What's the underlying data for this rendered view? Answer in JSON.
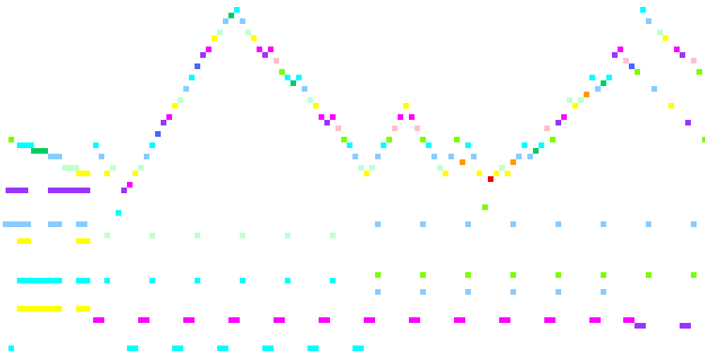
{
  "palette": {
    "cyan": "#00ffff",
    "sky": "#88ccff",
    "mint": "#c0ffd0",
    "yellow": "#ffff00",
    "magenta": "#ff00ff",
    "purple": "#9933ff",
    "lime": "#77ff00",
    "green": "#00cc66",
    "blue": "#4466ff",
    "pink": "#ffc0cb",
    "orange": "#ff9900",
    "red": "#ee0000"
  },
  "melody": [
    [
      12,
      194,
      "lime"
    ],
    [
      24,
      202,
      "cyan"
    ],
    [
      32,
      202,
      "cyan"
    ],
    [
      40,
      202,
      "cyan"
    ],
    [
      44,
      210,
      "green"
    ],
    [
      52,
      210,
      "green"
    ],
    [
      60,
      210,
      "green"
    ],
    [
      68,
      218,
      "sky"
    ],
    [
      76,
      218,
      "sky"
    ],
    [
      80,
      218,
      "sky"
    ],
    [
      88,
      234,
      "mint"
    ],
    [
      96,
      234,
      "mint"
    ],
    [
      104,
      234,
      "mint"
    ],
    [
      108,
      242,
      "yellow"
    ],
    [
      116,
      242,
      "yellow"
    ],
    [
      120,
      242,
      "yellow"
    ],
    [
      132,
      202,
      "cyan"
    ],
    [
      140,
      218,
      "sky"
    ],
    [
      148,
      242,
      "yellow"
    ],
    [
      156,
      234,
      "mint"
    ],
    [
      164,
      298,
      "cyan"
    ],
    [
      172,
      266,
      "purple"
    ],
    [
      180,
      258,
      "magenta"
    ],
    [
      188,
      242,
      "yellow"
    ],
    [
      196,
      234,
      "mint"
    ],
    [
      204,
      218,
      "sky"
    ],
    [
      212,
      202,
      "cyan"
    ],
    [
      220,
      186,
      "blue"
    ],
    [
      228,
      170,
      "purple"
    ],
    [
      236,
      162,
      "magenta"
    ],
    [
      244,
      146,
      "yellow"
    ],
    [
      252,
      138,
      "mint"
    ],
    [
      260,
      122,
      "sky"
    ],
    [
      268,
      106,
      "cyan"
    ],
    [
      276,
      90,
      "blue"
    ],
    [
      284,
      74,
      "purple"
    ],
    [
      292,
      66,
      "magenta"
    ],
    [
      300,
      50,
      "yellow"
    ],
    [
      308,
      42,
      "mint"
    ],
    [
      316,
      26,
      "sky"
    ],
    [
      324,
      18,
      "green"
    ],
    [
      332,
      10,
      "cyan"
    ],
    [
      340,
      26,
      "sky"
    ],
    [
      348,
      42,
      "mint"
    ],
    [
      356,
      50,
      "yellow"
    ],
    [
      364,
      66,
      "magenta"
    ],
    [
      372,
      74,
      "purple"
    ],
    [
      380,
      66,
      "magenta"
    ],
    [
      388,
      82,
      "pink"
    ],
    [
      396,
      98,
      "lime"
    ],
    [
      404,
      106,
      "cyan"
    ],
    [
      412,
      114,
      "green"
    ],
    [
      420,
      106,
      "cyan"
    ],
    [
      428,
      122,
      "sky"
    ],
    [
      436,
      138,
      "mint"
    ],
    [
      444,
      146,
      "yellow"
    ],
    [
      452,
      162,
      "magenta"
    ],
    [
      460,
      170,
      "purple"
    ],
    [
      468,
      162,
      "magenta"
    ],
    [
      476,
      178,
      "pink"
    ],
    [
      484,
      194,
      "lime"
    ],
    [
      492,
      202,
      "cyan"
    ],
    [
      500,
      218,
      "sky"
    ],
    [
      508,
      234,
      "mint"
    ],
    [
      516,
      242,
      "yellow"
    ],
    [
      524,
      234,
      "mint"
    ],
    [
      532,
      218,
      "sky"
    ],
    [
      540,
      202,
      "cyan"
    ],
    [
      548,
      194,
      "lime"
    ],
    [
      556,
      178,
      "pink"
    ],
    [
      564,
      162,
      "magenta"
    ],
    [
      572,
      146,
      "yellow"
    ],
    [
      580,
      162,
      "magenta"
    ],
    [
      588,
      178,
      "pink"
    ],
    [
      596,
      194,
      "lime"
    ],
    [
      604,
      202,
      "cyan"
    ],
    [
      612,
      218,
      "sky"
    ],
    [
      620,
      234,
      "mint"
    ],
    [
      628,
      242,
      "yellow"
    ],
    [
      636,
      218,
      "sky"
    ],
    [
      644,
      194,
      "lime"
    ],
    [
      652,
      226,
      "orange"
    ],
    [
      660,
      202,
      "cyan"
    ],
    [
      668,
      218,
      "sky"
    ],
    [
      676,
      242,
      "yellow"
    ],
    [
      684,
      290,
      "lime"
    ],
    [
      692,
      250,
      "red"
    ],
    [
      700,
      242,
      "yellow"
    ],
    [
      708,
      234,
      "mint"
    ],
    [
      716,
      242,
      "yellow"
    ],
    [
      724,
      226,
      "orange"
    ],
    [
      732,
      218,
      "sky"
    ],
    [
      740,
      202,
      "cyan"
    ],
    [
      748,
      218,
      "sky"
    ],
    [
      756,
      210,
      "green"
    ],
    [
      764,
      202,
      "cyan"
    ],
    [
      772,
      178,
      "pink"
    ],
    [
      780,
      194,
      "lime"
    ],
    [
      788,
      170,
      "purple"
    ],
    [
      796,
      162,
      "magenta"
    ],
    [
      804,
      138,
      "mint"
    ],
    [
      812,
      146,
      "yellow"
    ],
    [
      820,
      138,
      "mint"
    ],
    [
      828,
      130,
      "orange"
    ],
    [
      836,
      106,
      "cyan"
    ],
    [
      844,
      122,
      "sky"
    ],
    [
      852,
      114,
      "green"
    ],
    [
      860,
      106,
      "cyan"
    ],
    [
      868,
      74,
      "purple"
    ],
    [
      876,
      66,
      "magenta"
    ],
    [
      884,
      82,
      "pink"
    ],
    [
      892,
      90,
      "blue"
    ],
    [
      900,
      98,
      "lime"
    ],
    [
      908,
      10,
      "cyan"
    ],
    [
      916,
      26,
      "sky"
    ],
    [
      924,
      122,
      "sky"
    ],
    [
      932,
      42,
      "mint"
    ],
    [
      940,
      50,
      "yellow"
    ],
    [
      948,
      146,
      "yellow"
    ],
    [
      956,
      66,
      "magenta"
    ],
    [
      964,
      74,
      "purple"
    ],
    [
      972,
      170,
      "purple"
    ],
    [
      980,
      82,
      "pink"
    ],
    [
      988,
      98,
      "lime"
    ],
    [
      996,
      194,
      "lime"
    ]
  ],
  "accompaniment": [
    [
      8,
      266,
      "purple"
    ],
    [
      16,
      266,
      "purple"
    ],
    [
      24,
      266,
      "purple"
    ],
    [
      32,
      266,
      "purple"
    ],
    [
      68,
      266,
      "purple"
    ],
    [
      76,
      266,
      "purple"
    ],
    [
      84,
      266,
      "purple"
    ],
    [
      92,
      266,
      "purple"
    ],
    [
      100,
      266,
      "purple"
    ],
    [
      108,
      266,
      "purple"
    ],
    [
      116,
      266,
      "purple"
    ],
    [
      120,
      266,
      "purple"
    ],
    [
      4,
      314,
      "sky"
    ],
    [
      12,
      314,
      "sky"
    ],
    [
      20,
      314,
      "sky"
    ],
    [
      28,
      314,
      "sky"
    ],
    [
      36,
      314,
      "sky"
    ],
    [
      68,
      314,
      "sky"
    ],
    [
      76,
      314,
      "sky"
    ],
    [
      80,
      314,
      "sky"
    ],
    [
      108,
      314,
      "sky"
    ],
    [
      116,
      314,
      "sky"
    ],
    [
      24,
      338,
      "yellow"
    ],
    [
      32,
      338,
      "yellow"
    ],
    [
      36,
      338,
      "yellow"
    ],
    [
      108,
      338,
      "yellow"
    ],
    [
      116,
      338,
      "yellow"
    ],
    [
      120,
      338,
      "yellow"
    ],
    [
      24,
      394,
      "cyan"
    ],
    [
      32,
      394,
      "cyan"
    ],
    [
      40,
      394,
      "cyan"
    ],
    [
      48,
      394,
      "cyan"
    ],
    [
      56,
      394,
      "cyan"
    ],
    [
      64,
      394,
      "cyan"
    ],
    [
      72,
      394,
      "cyan"
    ],
    [
      80,
      394,
      "cyan"
    ],
    [
      108,
      394,
      "cyan"
    ],
    [
      116,
      394,
      "cyan"
    ],
    [
      120,
      394,
      "cyan"
    ],
    [
      24,
      434,
      "yellow"
    ],
    [
      32,
      434,
      "yellow"
    ],
    [
      40,
      434,
      "yellow"
    ],
    [
      48,
      434,
      "yellow"
    ],
    [
      56,
      434,
      "yellow"
    ],
    [
      64,
      434,
      "yellow"
    ],
    [
      72,
      434,
      "yellow"
    ],
    [
      80,
      434,
      "yellow"
    ],
    [
      108,
      434,
      "yellow"
    ],
    [
      116,
      434,
      "yellow"
    ],
    [
      120,
      434,
      "yellow"
    ],
    [
      148,
      330,
      "mint"
    ],
    [
      212,
      330,
      "mint"
    ],
    [
      276,
      330,
      "mint"
    ],
    [
      340,
      330,
      "mint"
    ],
    [
      404,
      330,
      "mint"
    ],
    [
      468,
      330,
      "mint"
    ],
    [
      148,
      394,
      "cyan"
    ],
    [
      212,
      394,
      "cyan"
    ],
    [
      276,
      394,
      "cyan"
    ],
    [
      340,
      394,
      "cyan"
    ],
    [
      404,
      394,
      "cyan"
    ],
    [
      468,
      394,
      "cyan"
    ],
    [
      532,
      314,
      "sky"
    ],
    [
      596,
      314,
      "sky"
    ],
    [
      660,
      314,
      "sky"
    ],
    [
      724,
      314,
      "sky"
    ],
    [
      788,
      314,
      "sky"
    ],
    [
      852,
      314,
      "sky"
    ],
    [
      916,
      314,
      "sky"
    ],
    [
      980,
      314,
      "sky"
    ],
    [
      532,
      386,
      "lime"
    ],
    [
      596,
      386,
      "lime"
    ],
    [
      660,
      386,
      "lime"
    ],
    [
      724,
      386,
      "lime"
    ],
    [
      788,
      386,
      "lime"
    ],
    [
      852,
      386,
      "lime"
    ],
    [
      916,
      386,
      "lime"
    ],
    [
      980,
      386,
      "lime"
    ],
    [
      532,
      410,
      "sky"
    ],
    [
      596,
      410,
      "sky"
    ],
    [
      660,
      410,
      "sky"
    ],
    [
      724,
      410,
      "sky"
    ],
    [
      788,
      410,
      "sky"
    ],
    [
      852,
      410,
      "sky"
    ],
    [
      132,
      450,
      "magenta"
    ],
    [
      140,
      450,
      "magenta"
    ],
    [
      196,
      450,
      "magenta"
    ],
    [
      204,
      450,
      "magenta"
    ],
    [
      260,
      450,
      "magenta"
    ],
    [
      268,
      450,
      "magenta"
    ],
    [
      324,
      450,
      "magenta"
    ],
    [
      332,
      450,
      "magenta"
    ],
    [
      388,
      450,
      "magenta"
    ],
    [
      396,
      450,
      "magenta"
    ],
    [
      452,
      450,
      "magenta"
    ],
    [
      460,
      450,
      "magenta"
    ],
    [
      516,
      450,
      "magenta"
    ],
    [
      524,
      450,
      "magenta"
    ],
    [
      580,
      450,
      "magenta"
    ],
    [
      588,
      450,
      "magenta"
    ],
    [
      644,
      450,
      "magenta"
    ],
    [
      652,
      450,
      "magenta"
    ],
    [
      708,
      450,
      "magenta"
    ],
    [
      716,
      450,
      "magenta"
    ],
    [
      772,
      450,
      "magenta"
    ],
    [
      780,
      450,
      "magenta"
    ],
    [
      836,
      450,
      "magenta"
    ],
    [
      844,
      450,
      "magenta"
    ],
    [
      884,
      450,
      "magenta"
    ],
    [
      892,
      450,
      "magenta"
    ],
    [
      900,
      458,
      "purple"
    ],
    [
      908,
      458,
      "purple"
    ],
    [
      964,
      458,
      "purple"
    ],
    [
      972,
      458,
      "purple"
    ],
    [
      12,
      490,
      "cyan"
    ],
    [
      180,
      490,
      "cyan"
    ],
    [
      188,
      490,
      "cyan"
    ],
    [
      244,
      490,
      "cyan"
    ],
    [
      252,
      490,
      "cyan"
    ],
    [
      308,
      490,
      "cyan"
    ],
    [
      316,
      490,
      "cyan"
    ],
    [
      372,
      490,
      "cyan"
    ],
    [
      380,
      490,
      "cyan"
    ],
    [
      436,
      490,
      "cyan"
    ],
    [
      444,
      490,
      "cyan"
    ],
    [
      500,
      490,
      "cyan"
    ],
    [
      508,
      490,
      "cyan"
    ]
  ]
}
